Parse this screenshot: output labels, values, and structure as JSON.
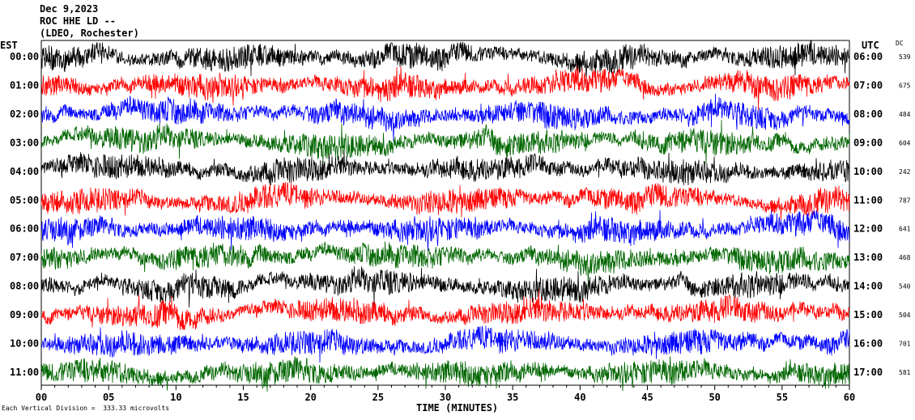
{
  "header": {
    "line1": "Dec 9,2023",
    "line2": "ROC HHE LD --",
    "line3": "(LDEO, Rochester)"
  },
  "chart_data": {
    "type": "line",
    "left_timezone": "EST",
    "right_timezone": "UTC",
    "dc_header": "DC",
    "xlabel": "TIME (MINUTES)",
    "x_ticks": [
      0,
      5,
      10,
      15,
      20,
      25,
      30,
      35,
      40,
      45,
      50,
      55,
      60
    ],
    "xlim": [
      0,
      60
    ],
    "footnote": "Each Vertical Division =  333.33 microvolts",
    "trace_colors": [
      "#000000",
      "#ff0000",
      "#0000ff",
      "#006600"
    ],
    "rows": [
      {
        "est": "00:00",
        "utc": "06:00",
        "dc": "539"
      },
      {
        "est": "01:00",
        "utc": "07:00",
        "dc": "675"
      },
      {
        "est": "02:00",
        "utc": "08:00",
        "dc": "484"
      },
      {
        "est": "03:00",
        "utc": "09:00",
        "dc": "604"
      },
      {
        "est": "04:00",
        "utc": "10:00",
        "dc": "242"
      },
      {
        "est": "05:00",
        "utc": "11:00",
        "dc": "787"
      },
      {
        "est": "06:00",
        "utc": "12:00",
        "dc": "641"
      },
      {
        "est": "07:00",
        "utc": "13:00",
        "dc": "468"
      },
      {
        "est": "08:00",
        "utc": "14:00",
        "dc": "540"
      },
      {
        "est": "09:00",
        "utc": "15:00",
        "dc": "504"
      },
      {
        "est": "10:00",
        "utc": "16:00",
        "dc": "701"
      },
      {
        "est": "11:00",
        "utc": "17:00",
        "dc": "581"
      }
    ]
  }
}
